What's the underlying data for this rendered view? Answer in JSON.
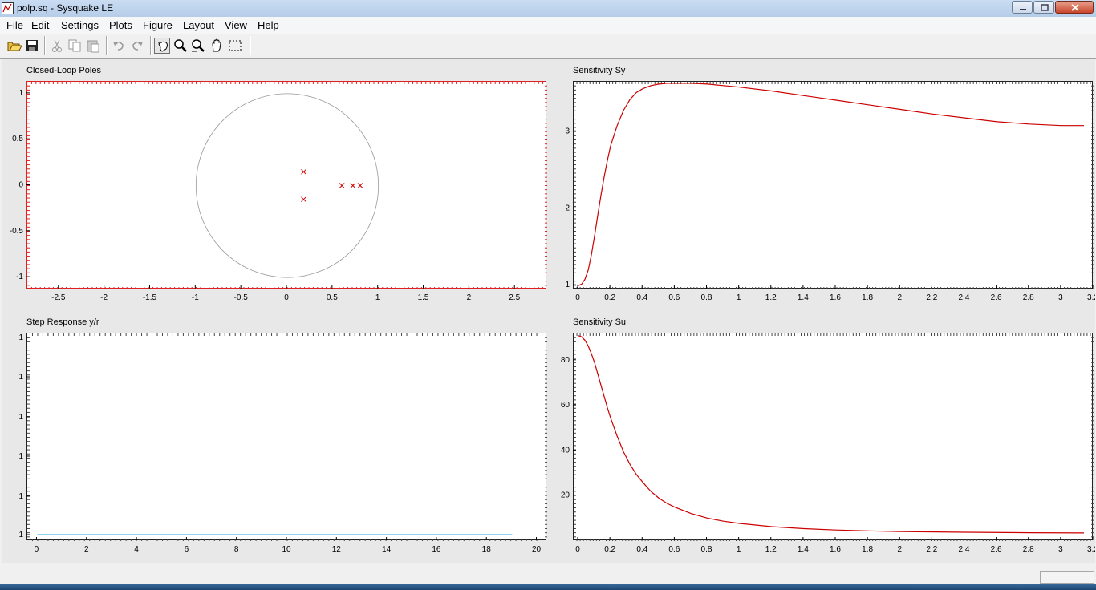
{
  "window": {
    "title": "polp.sq - Sysquake LE"
  },
  "menu": [
    "File",
    "Edit",
    "Settings",
    "Plots",
    "Figure",
    "Layout",
    "View",
    "Help"
  ],
  "toolbar": {
    "buttons": [
      "open-icon",
      "save-icon",
      "cut-icon",
      "copy-icon",
      "paste-icon",
      "undo-icon",
      "redo-icon",
      "select-icon",
      "zoom-in-icon",
      "zoom-x-icon",
      "pan-hand-icon",
      "zoom-rect-icon"
    ]
  },
  "plots": {
    "poles": {
      "title": "Closed-Loop Poles"
    },
    "sy": {
      "title": "Sensitivity Sy"
    },
    "step": {
      "title": "Step Response y/r"
    },
    "su": {
      "title": "Sensitivity Su"
    }
  },
  "chart_data": [
    {
      "type": "scatter",
      "title": "Closed-Loop Poles",
      "xlim": [
        -2.85,
        2.85
      ],
      "ylim": [
        -1.13,
        1.13
      ],
      "xticks": [
        -2.5,
        -2,
        -1.5,
        -1,
        -0.5,
        0,
        0.5,
        1,
        1.5,
        2,
        2.5
      ],
      "yticks": [
        -1,
        -0.5,
        0,
        0.5,
        1
      ],
      "unit_circle": true,
      "points": [
        {
          "x": 0.18,
          "y": 0.15
        },
        {
          "x": 0.18,
          "y": -0.15
        },
        {
          "x": 0.6,
          "y": 0
        },
        {
          "x": 0.72,
          "y": 0
        },
        {
          "x": 0.8,
          "y": 0
        }
      ],
      "marker": "x",
      "color": "#cc0000"
    },
    {
      "type": "line",
      "title": "Sensitivity Sy",
      "xlim": [
        -0.03,
        3.2
      ],
      "ylim": [
        0.95,
        3.65
      ],
      "xticks": [
        0,
        0.2,
        0.4,
        0.6,
        0.8,
        1,
        1.2,
        1.4,
        1.6,
        1.8,
        2,
        2.2,
        2.4,
        2.6,
        2.8,
        3,
        3.2
      ],
      "yticks": [
        1,
        2,
        3
      ],
      "x": [
        0,
        0.02,
        0.04,
        0.06,
        0.08,
        0.1,
        0.12,
        0.14,
        0.16,
        0.18,
        0.2,
        0.24,
        0.28,
        0.32,
        0.36,
        0.4,
        0.45,
        0.5,
        0.55,
        0.6,
        0.7,
        0.8,
        0.9,
        1.0,
        1.2,
        1.4,
        1.6,
        1.8,
        2.0,
        2.2,
        2.4,
        2.6,
        2.8,
        3.0,
        3.14
      ],
      "y": [
        1.0,
        1.02,
        1.08,
        1.2,
        1.4,
        1.65,
        1.92,
        2.18,
        2.42,
        2.63,
        2.82,
        3.08,
        3.28,
        3.42,
        3.51,
        3.56,
        3.6,
        3.62,
        3.63,
        3.63,
        3.63,
        3.62,
        3.6,
        3.58,
        3.53,
        3.47,
        3.41,
        3.35,
        3.29,
        3.23,
        3.18,
        3.13,
        3.1,
        3.08,
        3.08
      ],
      "color": "#cc0000"
    },
    {
      "type": "line",
      "title": "Step Response y/r",
      "xlim": [
        -0.4,
        20.4
      ],
      "xticks": [
        0,
        2,
        4,
        6,
        8,
        10,
        12,
        14,
        16,
        18,
        20
      ],
      "yticks": [
        "1",
        "1",
        "1",
        "1",
        "1",
        "1"
      ],
      "x": [
        0,
        19
      ],
      "y": [
        1,
        1
      ],
      "color": "#20a8e0"
    },
    {
      "type": "line",
      "title": "Sensitivity Su",
      "xlim": [
        -0.03,
        3.2
      ],
      "ylim": [
        0,
        92
      ],
      "xticks": [
        0,
        0.2,
        0.4,
        0.6,
        0.8,
        1,
        1.2,
        1.4,
        1.6,
        1.8,
        2,
        2.2,
        2.4,
        2.6,
        2.8,
        3,
        3.2
      ],
      "yticks": [
        20,
        40,
        60,
        80
      ],
      "x": [
        0,
        0.02,
        0.04,
        0.06,
        0.08,
        0.1,
        0.12,
        0.14,
        0.16,
        0.18,
        0.2,
        0.24,
        0.28,
        0.32,
        0.36,
        0.4,
        0.45,
        0.5,
        0.55,
        0.6,
        0.7,
        0.8,
        0.9,
        1.0,
        1.2,
        1.4,
        1.6,
        1.8,
        2.0,
        2.4,
        2.8,
        3.14
      ],
      "y": [
        91,
        90.5,
        89,
        86.5,
        83,
        79,
        74,
        69,
        64,
        59,
        54.5,
        46.5,
        39.5,
        34,
        29.5,
        26,
        22,
        19,
        16.7,
        15,
        12.2,
        10.2,
        8.8,
        7.8,
        6.4,
        5.5,
        4.9,
        4.5,
        4.2,
        3.9,
        3.7,
        3.6
      ],
      "color": "#cc0000"
    }
  ]
}
